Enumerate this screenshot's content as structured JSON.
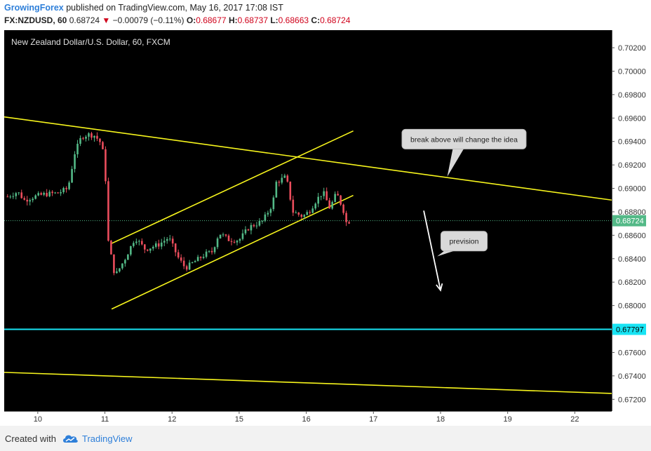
{
  "header": {
    "username": "GrowingForex",
    "published_text": "published on TradingView.com, May 16, 2017 17:08 IST",
    "symbol": "FX:NZDUSD, 60",
    "last": "0.68724",
    "change": "−0.00079 (−0.11%)",
    "o_label": "O:",
    "o_value": "0.68677",
    "h_label": "H:",
    "h_value": "0.68737",
    "l_label": "L:",
    "l_value": "0.68663",
    "c_label": "C:",
    "c_value": "0.68724"
  },
  "footer": {
    "created_with": "Created with",
    "brand": "TradingView"
  },
  "colors": {
    "background": "#000000",
    "bull": "#53b987",
    "bear": "#eb4d5c",
    "trend": "#f7f51c",
    "support": "#18e4f4",
    "price_tag": "#53b987"
  },
  "chart_data": {
    "type": "candlestick",
    "title": "New Zealand Dollar/U.S. Dollar, 60, FXCM",
    "ylim": [
      0.671,
      0.7035
    ],
    "y_ticks": [
      "0.70200",
      "0.70000",
      "0.69800",
      "0.69600",
      "0.69400",
      "0.69200",
      "0.69000",
      "0.68800",
      "0.68600",
      "0.68400",
      "0.68200",
      "0.68000",
      "0.67600",
      "0.67400",
      "0.67200"
    ],
    "x_ticks": [
      {
        "label": "10",
        "x": 0.0
      },
      {
        "label": "11",
        "x": 1.0
      },
      {
        "label": "12",
        "x": 2.0
      },
      {
        "label": "15",
        "x": 3.0
      },
      {
        "label": "16",
        "x": 4.0
      },
      {
        "label": "17",
        "x": 5.0
      },
      {
        "label": "18",
        "x": 6.0
      },
      {
        "label": "19",
        "x": 7.0
      },
      {
        "label": "22",
        "x": 8.0
      }
    ],
    "xlim": [
      -0.5,
      8.55
    ],
    "price_now": {
      "label": "0.68724",
      "value": 0.68724
    },
    "support": {
      "label": "0.67797",
      "value": 0.67797
    },
    "trendlines": [
      {
        "p1": [
          -0.5,
          0.6961
        ],
        "p2": [
          8.55,
          0.689
        ]
      },
      {
        "p1": [
          -0.5,
          0.6743
        ],
        "p2": [
          8.55,
          0.6725
        ]
      },
      {
        "p1": [
          1.1,
          0.6853
        ],
        "p2": [
          4.7,
          0.6949
        ]
      },
      {
        "p1": [
          1.1,
          0.6797
        ],
        "p2": [
          4.7,
          0.6894
        ]
      }
    ],
    "annotations": [
      {
        "text": "break above will change the idea",
        "x": 6.35,
        "y": 0.6942,
        "tail": [
          6.1,
          0.691
        ]
      },
      {
        "text": "prevision",
        "x": 6.35,
        "y": 0.6855,
        "tail": [
          5.95,
          0.6842
        ]
      }
    ],
    "arrow": {
      "from": [
        5.75,
        0.6881
      ],
      "to": [
        6.0,
        0.6813
      ]
    },
    "anchors": [
      [
        -0.45,
        0.6893
      ],
      [
        -0.3,
        0.6897
      ],
      [
        -0.2,
        0.689
      ],
      [
        -0.05,
        0.6893
      ],
      [
        0.1,
        0.6895
      ],
      [
        0.3,
        0.6896
      ],
      [
        0.45,
        0.69
      ],
      [
        0.55,
        0.693
      ],
      [
        0.65,
        0.6944
      ],
      [
        0.75,
        0.6946
      ],
      [
        0.85,
        0.6945
      ],
      [
        0.95,
        0.6938
      ],
      [
        1.0,
        0.692
      ],
      [
        1.05,
        0.6855
      ],
      [
        1.15,
        0.6825
      ],
      [
        1.3,
        0.684
      ],
      [
        1.45,
        0.6858
      ],
      [
        1.6,
        0.6848
      ],
      [
        1.8,
        0.6852
      ],
      [
        1.95,
        0.6858
      ],
      [
        2.1,
        0.684
      ],
      [
        2.2,
        0.6832
      ],
      [
        2.35,
        0.6838
      ],
      [
        2.5,
        0.6844
      ],
      [
        2.6,
        0.6846
      ],
      [
        2.7,
        0.6862
      ],
      [
        2.85,
        0.6856
      ],
      [
        3.0,
        0.6856
      ],
      [
        3.15,
        0.6867
      ],
      [
        3.35,
        0.6872
      ],
      [
        3.5,
        0.6887
      ],
      [
        3.55,
        0.6905
      ],
      [
        3.7,
        0.691
      ],
      [
        3.8,
        0.688
      ],
      [
        3.95,
        0.6876
      ],
      [
        4.05,
        0.6881
      ],
      [
        4.15,
        0.689
      ],
      [
        4.25,
        0.6897
      ],
      [
        4.35,
        0.6883
      ],
      [
        4.45,
        0.6896
      ],
      [
        4.55,
        0.6882
      ],
      [
        4.6,
        0.687
      ],
      [
        4.65,
        0.68724
      ]
    ]
  }
}
